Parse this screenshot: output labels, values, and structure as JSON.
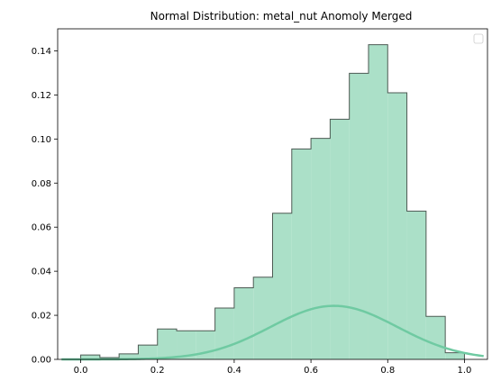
{
  "chart_data": {
    "type": "histogram",
    "title": "Normal Distribution: metal_nut Anomoly Merged",
    "xlabel": "",
    "ylabel": "",
    "xlim": [
      -0.06,
      1.06
    ],
    "ylim": [
      0,
      0.15
    ],
    "x_ticks": [
      "0.0",
      "0.2",
      "0.4",
      "0.6",
      "0.8",
      "1.0"
    ],
    "y_ticks": [
      "0.00",
      "0.02",
      "0.04",
      "0.06",
      "0.08",
      "0.10",
      "0.12",
      "0.14"
    ],
    "legend_placement": "top-right",
    "bar_color": "#abe0c8",
    "edge_color": "#4d5a53",
    "curve_color": "#6fcaa2",
    "bins": [
      {
        "x0": 0.0,
        "x1": 0.05,
        "value": 0.002
      },
      {
        "x0": 0.05,
        "x1": 0.1,
        "value": 0.0008
      },
      {
        "x0": 0.1,
        "x1": 0.15,
        "value": 0.0025
      },
      {
        "x0": 0.15,
        "x1": 0.2,
        "value": 0.0065
      },
      {
        "x0": 0.2,
        "x1": 0.25,
        "value": 0.0138
      },
      {
        "x0": 0.25,
        "x1": 0.3,
        "value": 0.013
      },
      {
        "x0": 0.3,
        "x1": 0.35,
        "value": 0.013
      },
      {
        "x0": 0.35,
        "x1": 0.4,
        "value": 0.0233
      },
      {
        "x0": 0.4,
        "x1": 0.45,
        "value": 0.0325
      },
      {
        "x0": 0.45,
        "x1": 0.5,
        "value": 0.0373
      },
      {
        "x0": 0.5,
        "x1": 0.55,
        "value": 0.0663
      },
      {
        "x0": 0.55,
        "x1": 0.6,
        "value": 0.0955
      },
      {
        "x0": 0.6,
        "x1": 0.65,
        "value": 0.1003
      },
      {
        "x0": 0.65,
        "x1": 0.7,
        "value": 0.109
      },
      {
        "x0": 0.7,
        "x1": 0.75,
        "value": 0.1298
      },
      {
        "x0": 0.75,
        "x1": 0.8,
        "value": 0.1428
      },
      {
        "x0": 0.8,
        "x1": 0.85,
        "value": 0.121
      },
      {
        "x0": 0.85,
        "x1": 0.9,
        "value": 0.0673
      },
      {
        "x0": 0.9,
        "x1": 0.95,
        "value": 0.0195
      },
      {
        "x0": 0.95,
        "x1": 1.0,
        "value": 0.003
      }
    ],
    "normal_curve": {
      "mean": 0.66,
      "std": 0.165,
      "peak": 0.0243,
      "x_range": [
        -0.05,
        1.05
      ]
    }
  }
}
